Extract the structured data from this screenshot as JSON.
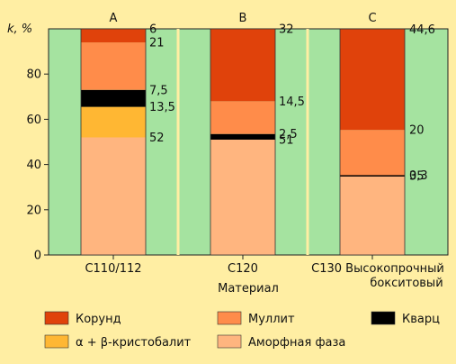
{
  "chart_data": {
    "type": "bar",
    "stacked": true,
    "ylabel": "k, %",
    "xlabel": "Материал",
    "ylim": [
      0,
      100
    ],
    "yticks": [
      "0",
      "20",
      "40",
      "60",
      "80"
    ],
    "grid": false,
    "legend_position": "bottom",
    "colors": {
      "background": "#ffeea3",
      "panel": "#a5e3a0",
      "separator": "#ffeea3"
    },
    "columns": [
      {
        "letter": "A",
        "category": "C110/112",
        "category_line2": "",
        "segments": [
          {
            "key": "amorph",
            "value": 52,
            "label": "52"
          },
          {
            "key": "cristobalite",
            "value": 13.5,
            "label": "13,5"
          },
          {
            "key": "quartz",
            "value": 7.5,
            "label": "7,5"
          },
          {
            "key": "mullite",
            "value": 21,
            "label": "21"
          },
          {
            "key": "corundum",
            "value": 6,
            "label": "6"
          }
        ]
      },
      {
        "letter": "B",
        "category": "C120",
        "category_line2": "",
        "segments": [
          {
            "key": "amorph",
            "value": 51,
            "label": "51"
          },
          {
            "key": "quartz",
            "value": 2.5,
            "label": "2,5"
          },
          {
            "key": "mullite",
            "value": 14.5,
            "label": "14,5"
          },
          {
            "key": "corundum",
            "value": 32,
            "label": "32"
          }
        ]
      },
      {
        "letter": "C",
        "category": "C130 Высокопрочный",
        "category_line2": "бокситовый",
        "segments": [
          {
            "key": "amorph",
            "value": 35,
            "label": "35"
          },
          {
            "key": "quartz",
            "value": 0.3,
            "label": "0,3"
          },
          {
            "key": "mullite",
            "value": 20,
            "label": "20"
          },
          {
            "key": "corundum",
            "value": 44.6,
            "label": "44,6"
          }
        ]
      }
    ],
    "series": [
      {
        "key": "corundum",
        "name": "Корунд",
        "color": "#e0420b"
      },
      {
        "key": "mullite",
        "name": "Муллит",
        "color": "#ff8c4a"
      },
      {
        "key": "quartz",
        "name": "Кварц",
        "color": "#000000"
      },
      {
        "key": "cristobalite",
        "name": "α + β-кристобалит",
        "color": "#ffb733"
      },
      {
        "key": "amorph",
        "name": "Аморфная фаза",
        "color": "#ffb57f"
      }
    ]
  }
}
